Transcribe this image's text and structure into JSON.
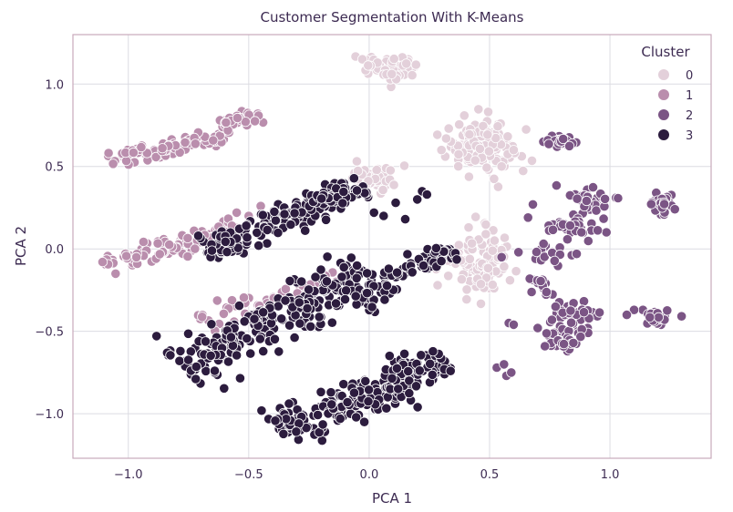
{
  "chart_data": {
    "type": "scatter",
    "title": "Customer Segmentation With K-Means",
    "xlabel": "PCA 1",
    "ylabel": "PCA 2",
    "xlim": [
      -1.23,
      1.42
    ],
    "ylim": [
      -1.27,
      1.3
    ],
    "xticks": [
      -1.0,
      -0.5,
      0.0,
      0.5,
      1.0
    ],
    "xtick_labels": [
      "−1.0",
      "−0.5",
      "0.0",
      "0.5",
      "1.0"
    ],
    "yticks": [
      -1.0,
      -0.5,
      0.0,
      0.5,
      1.0
    ],
    "ytick_labels": [
      "−1.0",
      "−0.5",
      "0.0",
      "0.5",
      "1.0"
    ],
    "grid": true,
    "legend": {
      "title": "Cluster",
      "placement": "top-right",
      "entries": [
        "0",
        "1",
        "2",
        "3"
      ]
    },
    "colors": {
      "0": "#e3d0da",
      "1": "#ba8ead",
      "2": "#7b5585",
      "3": "#2c1c3e",
      "background": "#ffffff",
      "grid": "#dcdce2",
      "spine": "#c9a9bb",
      "text": "#3d2b52",
      "marker_edge": "#ffffff"
    },
    "series": [
      {
        "name": "0",
        "clusters": [
          {
            "x": 0.06,
            "y": 1.1,
            "sx": 0.06,
            "sy": 0.04,
            "n": 55
          },
          {
            "x": 0.47,
            "y": 0.63,
            "sx": 0.07,
            "sy": 0.07,
            "n": 130
          },
          {
            "x": 0.03,
            "y": 0.43,
            "sx": 0.06,
            "sy": 0.04,
            "n": 50
          },
          {
            "x": 0.46,
            "y": -0.08,
            "sx": 0.06,
            "sy": 0.1,
            "n": 100
          }
        ],
        "points": [
          [
            0.3,
            0.6
          ],
          [
            0.32,
            0.67
          ],
          [
            0.6,
            0.6
          ],
          [
            0.55,
            0.5
          ]
        ]
      },
      {
        "name": "1",
        "line_clusters": [
          {
            "x0": -1.1,
            "y0": 0.54,
            "x1": -0.6,
            "y1": 0.67,
            "w": 0.025,
            "n": 95
          },
          {
            "x0": -0.61,
            "y0": 0.74,
            "x1": -0.45,
            "y1": 0.81,
            "w": 0.02,
            "n": 40
          },
          {
            "x0": -1.12,
            "y0": -0.1,
            "x1": -0.55,
            "y1": 0.12,
            "w": 0.03,
            "n": 110
          },
          {
            "x0": -0.7,
            "y0": -0.45,
            "x1": -0.05,
            "y1": -0.15,
            "w": 0.035,
            "n": 55
          }
        ],
        "points": [
          [
            -0.55,
            0.22
          ],
          [
            -0.5,
            0.2
          ],
          [
            -0.45,
            0.26
          ],
          [
            -0.6,
            0.05
          ]
        ]
      },
      {
        "name": "2",
        "clusters": [
          {
            "x": 0.8,
            "y": 0.65,
            "sx": 0.04,
            "sy": 0.02,
            "n": 30
          },
          {
            "x": 0.91,
            "y": 0.3,
            "sx": 0.05,
            "sy": 0.04,
            "n": 45
          },
          {
            "x": 0.87,
            "y": 0.13,
            "sx": 0.07,
            "sy": 0.04,
            "n": 35
          },
          {
            "x": 1.22,
            "y": 0.27,
            "sx": 0.03,
            "sy": 0.03,
            "n": 30
          },
          {
            "x": 0.76,
            "y": -0.02,
            "sx": 0.04,
            "sy": 0.04,
            "n": 25
          },
          {
            "x": 0.72,
            "y": -0.22,
            "sx": 0.03,
            "sy": 0.03,
            "n": 15
          },
          {
            "x": 0.85,
            "y": -0.38,
            "sx": 0.05,
            "sy": 0.04,
            "n": 40
          },
          {
            "x": 0.82,
            "y": -0.55,
            "sx": 0.05,
            "sy": 0.04,
            "n": 35
          },
          {
            "x": 1.2,
            "y": -0.42,
            "sx": 0.04,
            "sy": 0.03,
            "n": 25
          }
        ],
        "points": [
          [
            0.66,
            0.19
          ],
          [
            0.68,
            0.27
          ],
          [
            0.55,
            -0.05
          ],
          [
            0.62,
            -0.02
          ],
          [
            0.58,
            -0.45
          ],
          [
            0.6,
            -0.46
          ],
          [
            0.53,
            -0.72
          ],
          [
            0.56,
            -0.7
          ],
          [
            0.57,
            -0.77
          ],
          [
            0.59,
            -0.75
          ],
          [
            1.1,
            -0.37
          ],
          [
            1.07,
            -0.4
          ],
          [
            0.7,
            -0.48
          ],
          [
            0.73,
            -0.59
          ]
        ]
      },
      {
        "name": "3",
        "line_clusters": [
          {
            "x0": -0.68,
            "y0": -0.02,
            "x1": -0.02,
            "y1": 0.37,
            "w": 0.045,
            "n": 170
          },
          {
            "x0": -0.78,
            "y0": -0.72,
            "x1": 0.0,
            "y1": -0.13,
            "w": 0.06,
            "n": 240
          },
          {
            "x0": -0.05,
            "y0": -0.35,
            "x1": 0.2,
            "y1": -0.05,
            "w": 0.04,
            "n": 45
          },
          {
            "x0": 0.2,
            "y0": -0.1,
            "x1": 0.35,
            "y1": 0.0,
            "w": 0.03,
            "n": 40
          },
          {
            "x0": -0.38,
            "y0": -1.1,
            "x1": 0.33,
            "y1": -0.68,
            "w": 0.06,
            "n": 220
          },
          {
            "x0": -0.3,
            "y0": 0.28,
            "x1": -0.1,
            "y1": 0.35,
            "w": 0.03,
            "n": 20
          }
        ],
        "points": [
          [
            0.22,
            0.35
          ],
          [
            0.24,
            0.33
          ],
          [
            0.2,
            0.3
          ],
          [
            0.06,
            0.2
          ],
          [
            0.02,
            0.22
          ],
          [
            0.11,
            0.28
          ],
          [
            0.15,
            0.18
          ],
          [
            -0.09,
            -0.93
          ],
          [
            -0.12,
            -1.03
          ],
          [
            -0.02,
            -1.05
          ]
        ]
      }
    ]
  }
}
